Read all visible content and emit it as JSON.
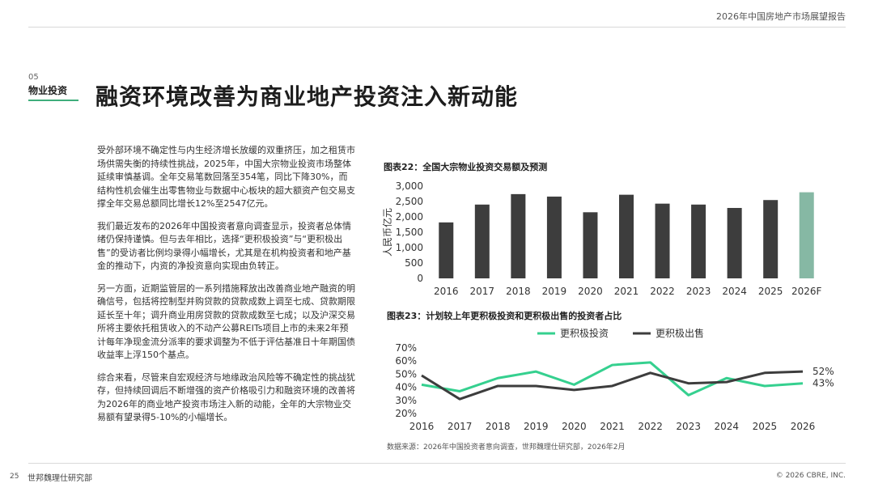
{
  "header": {
    "report_title": "2026年中国房地产市场展望报告"
  },
  "section": {
    "number": "05",
    "name": "物业投资"
  },
  "headline": "融资环境改善为商业地产投资注入新动能",
  "body": {
    "p1": "受外部环境不确定性与内生经济增长放缓的双重挤压，加之租赁市场供需失衡的持续性挑战，2025年，中国大宗物业投资市场整体延续审慎基调。全年交易笔数回落至354笔，同比下降30%，而结构性机会催生出零售物业与数据中心板块的超大额资产包交易支撑全年交易总额同比增长12%至2547亿元。",
    "p2": "我们最近发布的2026年中国投资者意向调查显示，投资者总体情绪仍保持谨慎。但与去年相比，选择“更积极投资”与“更积极出售”的受访者比例均录得小幅增长，尤其是在机构投资者和地产基金的推动下，内资的净投资意向实现由负转正。",
    "p3": "另一方面，近期监管层的一系列措施释放出改善商业地产融资的明确信号，包括将控制型并购贷款的贷款成数上调至七成、贷款期限延长至十年；调升商业用房贷款的贷款成数至七成；以及沪深交易所将主要依托租赁收入的不动产公募REITs项目上市的未来2年预计每年净现金流分派率的要求调整为不低于评估基准日十年期国债收益率上浮150个基点。",
    "p4": "综合来看，尽管来自宏观经济与地缘政治风险等不确定性的挑战犹存，但持续回调后不断增强的资产价格吸引力和融资环境的改善将为2026年的商业地产投资市场注入新的动能，全年的大宗物业交易额有望录得5-10%的小幅增长。"
  },
  "chart_data": [
    {
      "type": "bar",
      "title": "图表22：全国大宗物业投资交易额及预测",
      "ylabel": "人民币亿元",
      "xlabel": "",
      "categories": [
        "2016",
        "2017",
        "2018",
        "2019",
        "2020",
        "2021",
        "2022",
        "2023",
        "2024",
        "2025",
        "2026F"
      ],
      "values": [
        1820,
        2400,
        2740,
        2660,
        2150,
        2720,
        2430,
        2400,
        2290,
        2547,
        2800
      ],
      "yticks": [
        "0",
        "500",
        "1,000",
        "1,500",
        "2,000",
        "2,500",
        "3,000"
      ],
      "ylim": [
        0,
        3000
      ],
      "colors": {
        "actual": "#3d3d3d",
        "forecast": "#86b8a4"
      },
      "forecast_categories": [
        "2026F"
      ],
      "grid": false,
      "legend": "none"
    },
    {
      "type": "line",
      "title": "图表23：计划较上年更积极投资和更积极出售的投资者占比",
      "categories": [
        "2016",
        "2017",
        "2018",
        "2019",
        "2020",
        "2021",
        "2022",
        "2023",
        "2024",
        "2025",
        "2026"
      ],
      "series": [
        {
          "name": "更积极投资",
          "color": "#35d08f",
          "values": [
            42,
            37,
            47,
            52,
            42,
            57,
            59,
            34,
            47,
            41,
            43
          ]
        },
        {
          "name": "更积极出售",
          "color": "#3d3d3d",
          "values": [
            49,
            31,
            41,
            41,
            38,
            41,
            51,
            43,
            44,
            51,
            52
          ]
        }
      ],
      "yticks": [
        "20%",
        "30%",
        "40%",
        "50%",
        "60%",
        "70%"
      ],
      "ylim": [
        20,
        70
      ],
      "end_labels": [
        "43%",
        "52%"
      ],
      "grid": false,
      "legend": "top"
    }
  ],
  "source": "数据来源：2026年中国投资者意向调查，世邦魏理仕研究部，2026年2月",
  "footer": {
    "page_number": "25",
    "org": "世邦魏理仕研究部",
    "copyright": "© 2026 CBRE, INC."
  }
}
